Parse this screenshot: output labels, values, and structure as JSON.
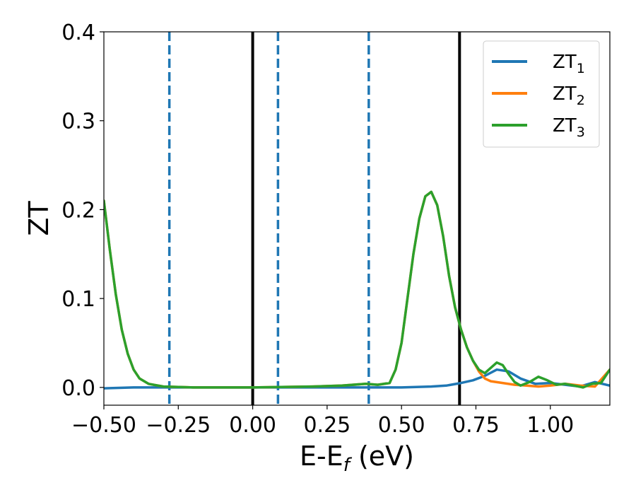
{
  "chart_data": {
    "type": "line",
    "xlabel": "E-E",
    "xlabel_sub": "f",
    "xlabel_unit": " (eV)",
    "ylabel": "ZT",
    "xlim": [
      -0.5,
      1.2
    ],
    "ylim": [
      -0.02,
      0.4
    ],
    "xticks": [
      -0.5,
      -0.25,
      0.0,
      0.25,
      0.5,
      0.75,
      1.0
    ],
    "xtick_labels": [
      "−0.50",
      "−0.25",
      "0.00",
      "0.25",
      "0.50",
      "0.75",
      "1.00"
    ],
    "yticks": [
      0.0,
      0.1,
      0.2,
      0.3,
      0.4
    ],
    "ytick_labels": [
      "0.0",
      "0.1",
      "0.2",
      "0.3",
      "0.4"
    ],
    "grid": false,
    "legend_position": "top-right",
    "vlines": [
      {
        "x": -0.28,
        "style": "dashed",
        "color": "#1f77b4"
      },
      {
        "x": 0.0,
        "style": "solid",
        "color": "#000000"
      },
      {
        "x": 0.085,
        "style": "dashed",
        "color": "#1f77b4"
      },
      {
        "x": 0.39,
        "style": "dashed",
        "color": "#1f77b4"
      },
      {
        "x": 0.695,
        "style": "solid",
        "color": "#000000"
      }
    ],
    "series": [
      {
        "name": "ZT",
        "name_sub": "1",
        "color": "#1f77b4",
        "x": [
          -0.5,
          -0.45,
          -0.4,
          -0.3,
          -0.2,
          0.0,
          0.2,
          0.4,
          0.5,
          0.55,
          0.6,
          0.65,
          0.7,
          0.74,
          0.78,
          0.82,
          0.86,
          0.9,
          0.95,
          1.0,
          1.05,
          1.1,
          1.15,
          1.2
        ],
        "y": [
          -0.001,
          -0.0005,
          0.0,
          0.0,
          0.0,
          0.0,
          0.0,
          0.0,
          0.0,
          0.0005,
          0.001,
          0.002,
          0.005,
          0.008,
          0.013,
          0.02,
          0.018,
          0.01,
          0.004,
          0.005,
          0.003,
          0.001,
          0.006,
          0.002
        ]
      },
      {
        "name": "ZT",
        "name_sub": "2",
        "color": "#ff7f0e",
        "x": [
          -0.5,
          -0.48,
          -0.46,
          -0.44,
          -0.42,
          -0.4,
          -0.38,
          -0.35,
          -0.3,
          -0.25,
          -0.2,
          0.0,
          0.2,
          0.3,
          0.38,
          0.42,
          0.46,
          0.48,
          0.5,
          0.52,
          0.54,
          0.56,
          0.58,
          0.6,
          0.62,
          0.64,
          0.66,
          0.68,
          0.7,
          0.72,
          0.74,
          0.76,
          0.78,
          0.8,
          0.84,
          0.88,
          0.92,
          0.96,
          1.0,
          1.05,
          1.1,
          1.15,
          1.2
        ],
        "y": [
          0.21,
          0.155,
          0.105,
          0.065,
          0.038,
          0.02,
          0.01,
          0.004,
          0.001,
          0.0005,
          0.0,
          0.0,
          0.001,
          0.002,
          0.004,
          0.003,
          0.005,
          0.02,
          0.05,
          0.1,
          0.15,
          0.19,
          0.215,
          0.22,
          0.205,
          0.17,
          0.125,
          0.09,
          0.065,
          0.045,
          0.03,
          0.018,
          0.01,
          0.007,
          0.005,
          0.003,
          0.002,
          0.001,
          0.002,
          0.004,
          0.002,
          0.001,
          0.02
        ]
      },
      {
        "name": "ZT",
        "name_sub": "3",
        "color": "#2ca02c",
        "x": [
          -0.5,
          -0.48,
          -0.46,
          -0.44,
          -0.42,
          -0.4,
          -0.38,
          -0.35,
          -0.3,
          -0.25,
          -0.2,
          0.0,
          0.2,
          0.3,
          0.38,
          0.42,
          0.46,
          0.48,
          0.5,
          0.52,
          0.54,
          0.56,
          0.58,
          0.6,
          0.62,
          0.64,
          0.66,
          0.68,
          0.7,
          0.72,
          0.74,
          0.76,
          0.78,
          0.8,
          0.82,
          0.84,
          0.86,
          0.88,
          0.9,
          0.93,
          0.96,
          0.99,
          1.02,
          1.05,
          1.08,
          1.11,
          1.14,
          1.17,
          1.2
        ],
        "y": [
          0.21,
          0.155,
          0.105,
          0.065,
          0.038,
          0.02,
          0.01,
          0.004,
          0.001,
          0.0005,
          0.0,
          0.0,
          0.001,
          0.002,
          0.004,
          0.003,
          0.005,
          0.02,
          0.05,
          0.1,
          0.15,
          0.19,
          0.215,
          0.22,
          0.205,
          0.17,
          0.125,
          0.09,
          0.065,
          0.045,
          0.03,
          0.02,
          0.016,
          0.022,
          0.028,
          0.025,
          0.015,
          0.006,
          0.002,
          0.006,
          0.012,
          0.008,
          0.003,
          0.004,
          0.002,
          0.0,
          0.004,
          0.005,
          0.02
        ]
      }
    ]
  }
}
